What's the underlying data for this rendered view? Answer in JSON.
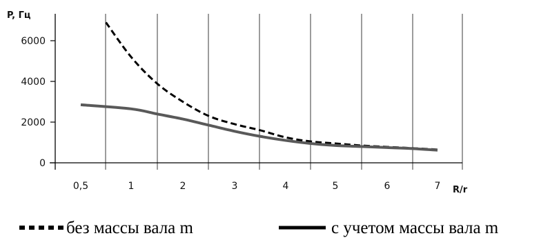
{
  "chart_data": {
    "type": "line",
    "ylabel": "P, Гц",
    "xlabel": "R/r",
    "x_tick_labels": [
      "0,5",
      "1",
      "2",
      "3",
      "4",
      "5",
      "6",
      "7"
    ],
    "x": [
      0.5,
      1,
      2,
      3,
      4,
      5,
      6,
      7
    ],
    "y_ticks": [
      0,
      2000,
      4000,
      6000
    ],
    "y_tick_labels": [
      "0",
      "2000",
      "4000",
      "6000"
    ],
    "ylim": [
      0,
      7000
    ],
    "grid": "vertical",
    "legend_position": "bottom",
    "series": [
      {
        "name": "без массы вала m",
        "style": "dashed",
        "color": "#000000",
        "points": [
          [
            0.75,
            6900
          ],
          [
            1,
            5200
          ],
          [
            1.5,
            3900
          ],
          [
            2,
            3000
          ],
          [
            2.5,
            2300
          ],
          [
            3,
            1900
          ],
          [
            3.5,
            1600
          ],
          [
            4,
            1250
          ],
          [
            4.5,
            1050
          ],
          [
            5,
            950
          ],
          [
            5.5,
            850
          ],
          [
            6,
            780
          ],
          [
            6.5,
            720
          ],
          [
            7,
            650
          ]
        ]
      },
      {
        "name": "с учетом массы вала m",
        "style": "solid",
        "color": "#595959",
        "points": [
          [
            0.5,
            2850
          ],
          [
            1,
            2650
          ],
          [
            1.5,
            2400
          ],
          [
            2,
            2150
          ],
          [
            2.5,
            1850
          ],
          [
            3,
            1550
          ],
          [
            3.5,
            1300
          ],
          [
            4,
            1100
          ],
          [
            4.5,
            950
          ],
          [
            5,
            850
          ],
          [
            5.5,
            800
          ],
          [
            6,
            750
          ],
          [
            6.5,
            700
          ],
          [
            7,
            620
          ]
        ]
      }
    ]
  }
}
